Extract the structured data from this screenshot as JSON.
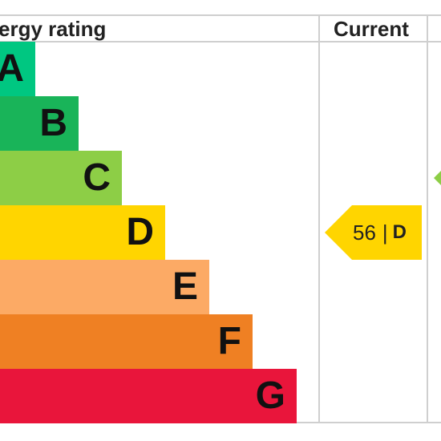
{
  "header": {
    "rating_label": "ergy rating",
    "current_label": "Current"
  },
  "bands": [
    {
      "letter": "A",
      "color": "#00c781"
    },
    {
      "letter": "B",
      "color": "#19b459"
    },
    {
      "letter": "C",
      "color": "#8dce46"
    },
    {
      "letter": "D",
      "color": "#ffd500"
    },
    {
      "letter": "E",
      "color": "#fcaa65"
    },
    {
      "letter": "F",
      "color": "#ef8023"
    },
    {
      "letter": "G",
      "color": "#e9153b"
    }
  ],
  "current": {
    "value": "56",
    "separator": "|",
    "letter": "D",
    "color": "#ffd500"
  },
  "potential_arrow_color": "#8dce46"
}
